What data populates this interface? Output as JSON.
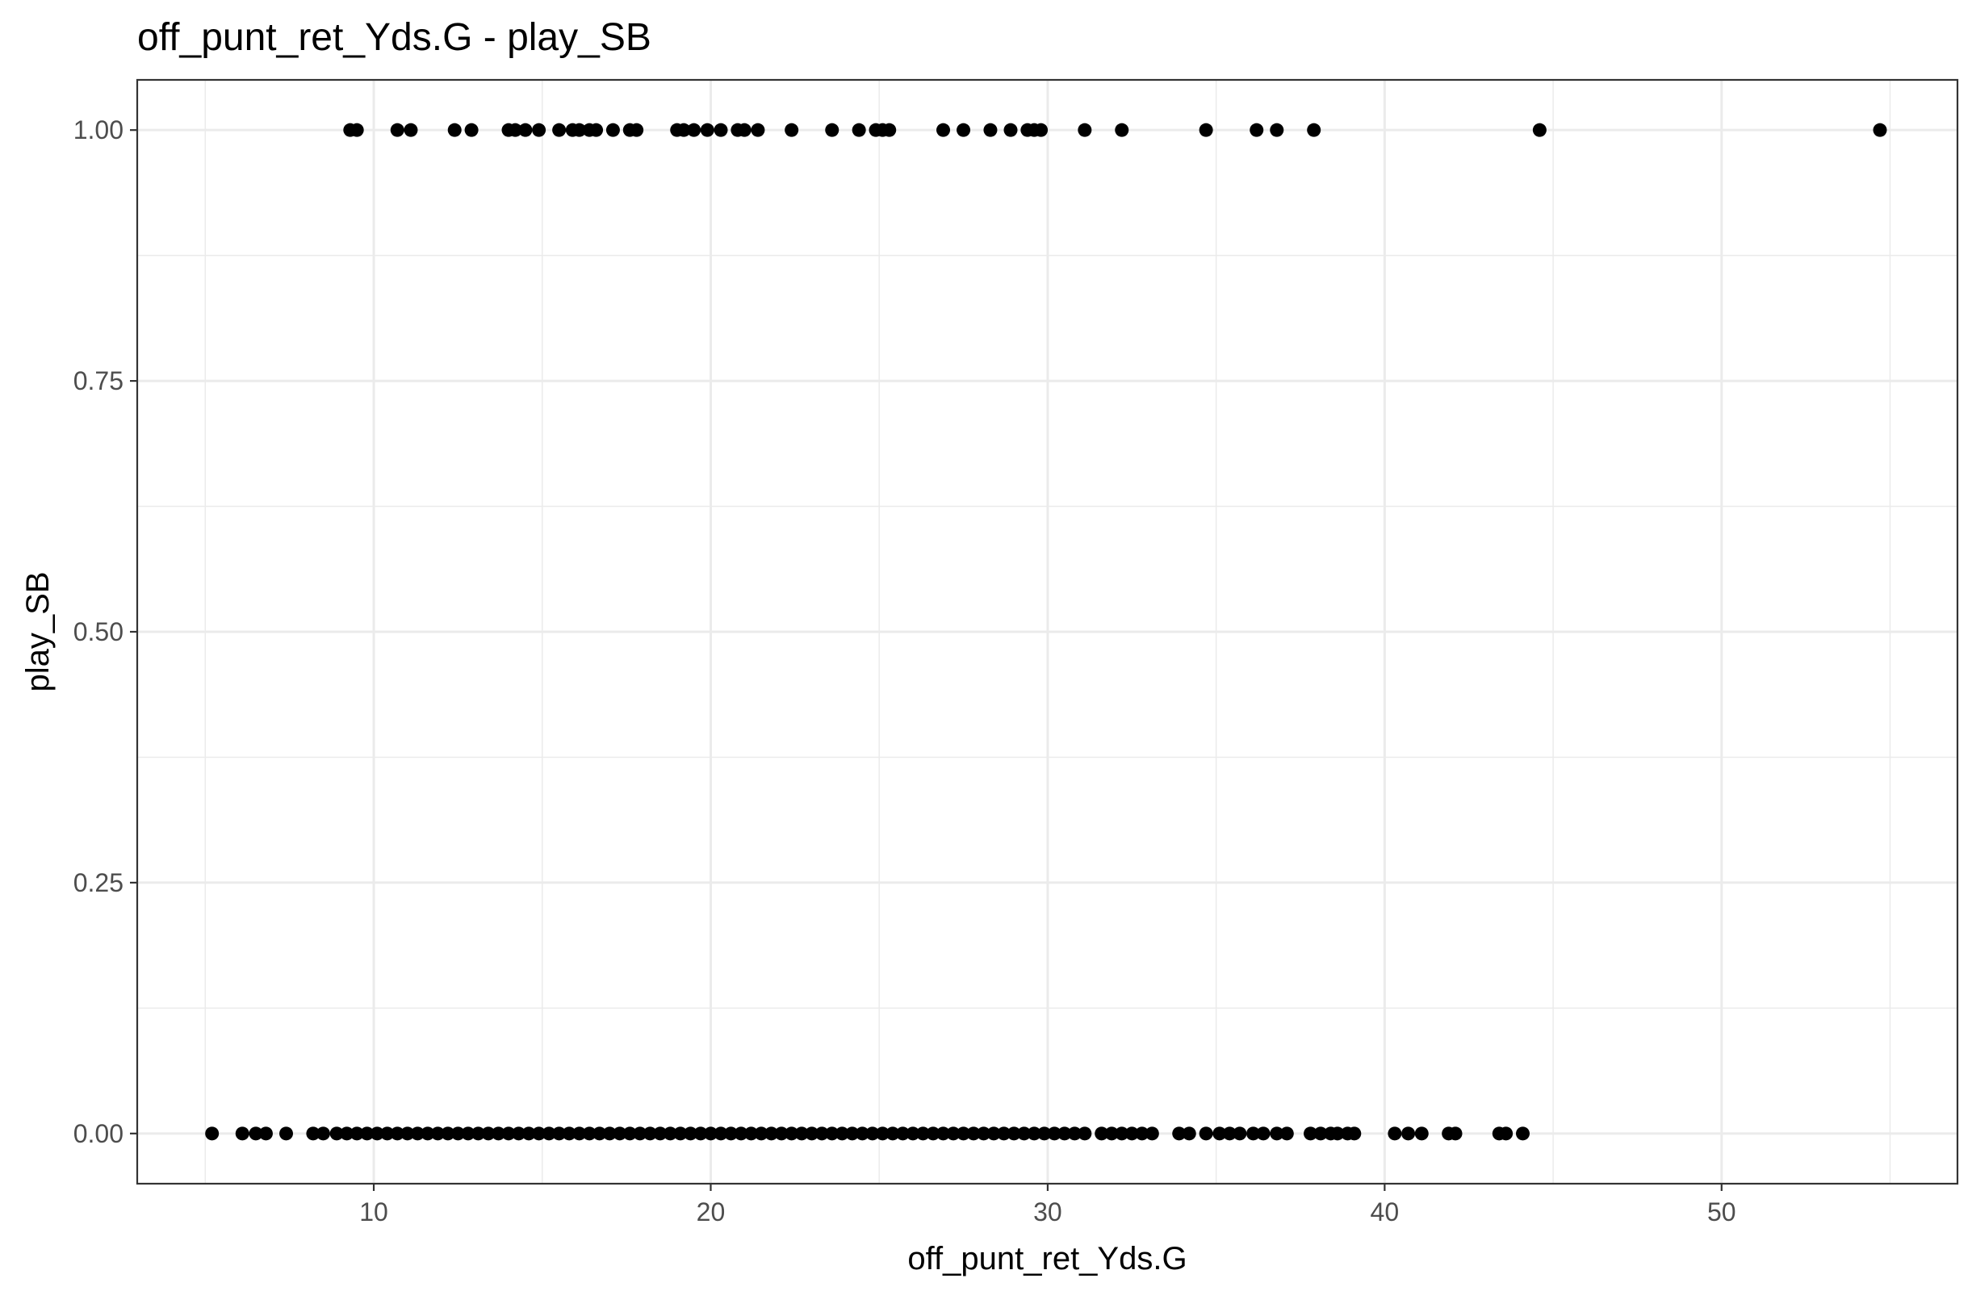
{
  "chart_data": {
    "type": "scatter",
    "title": "off_punt_ret_Yds.G - play_SB",
    "xlabel": "off_punt_ret_Yds.G",
    "ylabel": "play_SB",
    "xlim": [
      2.98,
      57.0
    ],
    "ylim": [
      -0.05,
      1.05
    ],
    "x_ticks": [
      10,
      20,
      30,
      40,
      50
    ],
    "x_tick_labels": [
      "10",
      "20",
      "30",
      "40",
      "50"
    ],
    "y_ticks": [
      0,
      0.25,
      0.5,
      0.75,
      1
    ],
    "y_tick_labels": [
      "0.00",
      "0.25",
      "0.50",
      "0.75",
      "1.00"
    ],
    "grid": true,
    "legend": "none",
    "point_color": "#000000",
    "series": [
      {
        "values": [
          {
            "x": 9.3,
            "y": 1
          },
          {
            "x": 9.5,
            "y": 1
          },
          {
            "x": 10.7,
            "y": 1
          },
          {
            "x": 11.1,
            "y": 1
          },
          {
            "x": 12.4,
            "y": 1
          },
          {
            "x": 12.9,
            "y": 1
          },
          {
            "x": 14.0,
            "y": 1
          },
          {
            "x": 14.2,
            "y": 1
          },
          {
            "x": 14.5,
            "y": 1
          },
          {
            "x": 14.9,
            "y": 1
          },
          {
            "x": 15.5,
            "y": 1
          },
          {
            "x": 15.9,
            "y": 1
          },
          {
            "x": 16.1,
            "y": 1
          },
          {
            "x": 16.4,
            "y": 1
          },
          {
            "x": 16.6,
            "y": 1
          },
          {
            "x": 17.1,
            "y": 1
          },
          {
            "x": 17.6,
            "y": 1
          },
          {
            "x": 17.8,
            "y": 1
          },
          {
            "x": 19.0,
            "y": 1
          },
          {
            "x": 19.2,
            "y": 1
          },
          {
            "x": 19.5,
            "y": 1
          },
          {
            "x": 19.9,
            "y": 1
          },
          {
            "x": 20.3,
            "y": 1
          },
          {
            "x": 20.8,
            "y": 1
          },
          {
            "x": 21.0,
            "y": 1
          },
          {
            "x": 21.4,
            "y": 1
          },
          {
            "x": 22.4,
            "y": 1
          },
          {
            "x": 23.6,
            "y": 1
          },
          {
            "x": 24.4,
            "y": 1
          },
          {
            "x": 24.9,
            "y": 1
          },
          {
            "x": 25.1,
            "y": 1
          },
          {
            "x": 25.3,
            "y": 1
          },
          {
            "x": 26.9,
            "y": 1
          },
          {
            "x": 27.5,
            "y": 1
          },
          {
            "x": 28.3,
            "y": 1
          },
          {
            "x": 28.9,
            "y": 1
          },
          {
            "x": 29.4,
            "y": 1
          },
          {
            "x": 29.6,
            "y": 1
          },
          {
            "x": 29.8,
            "y": 1
          },
          {
            "x": 31.1,
            "y": 1
          },
          {
            "x": 32.2,
            "y": 1
          },
          {
            "x": 34.7,
            "y": 1
          },
          {
            "x": 36.2,
            "y": 1
          },
          {
            "x": 36.8,
            "y": 1
          },
          {
            "x": 37.9,
            "y": 1
          },
          {
            "x": 44.6,
            "y": 1
          },
          {
            "x": 54.7,
            "y": 1
          },
          {
            "x": 5.2,
            "y": 0
          },
          {
            "x": 6.1,
            "y": 0
          },
          {
            "x": 6.5,
            "y": 0
          },
          {
            "x": 6.8,
            "y": 0
          },
          {
            "x": 7.4,
            "y": 0
          },
          {
            "x": 8.2,
            "y": 0
          },
          {
            "x": 8.5,
            "y": 0
          },
          {
            "x": 8.9,
            "y": 0
          },
          {
            "x": 9.2,
            "y": 0
          },
          {
            "x": 9.5,
            "y": 0
          },
          {
            "x": 9.8,
            "y": 0
          },
          {
            "x": 10.1,
            "y": 0
          },
          {
            "x": 10.4,
            "y": 0
          },
          {
            "x": 10.7,
            "y": 0
          },
          {
            "x": 11.0,
            "y": 0
          },
          {
            "x": 11.3,
            "y": 0
          },
          {
            "x": 11.6,
            "y": 0
          },
          {
            "x": 11.9,
            "y": 0
          },
          {
            "x": 12.2,
            "y": 0
          },
          {
            "x": 12.5,
            "y": 0
          },
          {
            "x": 12.8,
            "y": 0
          },
          {
            "x": 13.1,
            "y": 0
          },
          {
            "x": 13.4,
            "y": 0
          },
          {
            "x": 13.7,
            "y": 0
          },
          {
            "x": 14.0,
            "y": 0
          },
          {
            "x": 14.3,
            "y": 0
          },
          {
            "x": 14.6,
            "y": 0
          },
          {
            "x": 14.9,
            "y": 0
          },
          {
            "x": 15.2,
            "y": 0
          },
          {
            "x": 15.5,
            "y": 0
          },
          {
            "x": 15.8,
            "y": 0
          },
          {
            "x": 16.1,
            "y": 0
          },
          {
            "x": 16.4,
            "y": 0
          },
          {
            "x": 16.7,
            "y": 0
          },
          {
            "x": 17.0,
            "y": 0
          },
          {
            "x": 17.3,
            "y": 0
          },
          {
            "x": 17.6,
            "y": 0
          },
          {
            "x": 17.9,
            "y": 0
          },
          {
            "x": 18.2,
            "y": 0
          },
          {
            "x": 18.5,
            "y": 0
          },
          {
            "x": 18.8,
            "y": 0
          },
          {
            "x": 19.1,
            "y": 0
          },
          {
            "x": 19.4,
            "y": 0
          },
          {
            "x": 19.7,
            "y": 0
          },
          {
            "x": 20.0,
            "y": 0
          },
          {
            "x": 20.3,
            "y": 0
          },
          {
            "x": 20.6,
            "y": 0
          },
          {
            "x": 20.9,
            "y": 0
          },
          {
            "x": 21.2,
            "y": 0
          },
          {
            "x": 21.5,
            "y": 0
          },
          {
            "x": 21.8,
            "y": 0
          },
          {
            "x": 22.1,
            "y": 0
          },
          {
            "x": 22.4,
            "y": 0
          },
          {
            "x": 22.7,
            "y": 0
          },
          {
            "x": 23.0,
            "y": 0
          },
          {
            "x": 23.3,
            "y": 0
          },
          {
            "x": 23.6,
            "y": 0
          },
          {
            "x": 23.9,
            "y": 0
          },
          {
            "x": 24.2,
            "y": 0
          },
          {
            "x": 24.5,
            "y": 0
          },
          {
            "x": 24.8,
            "y": 0
          },
          {
            "x": 25.1,
            "y": 0
          },
          {
            "x": 25.4,
            "y": 0
          },
          {
            "x": 25.7,
            "y": 0
          },
          {
            "x": 26.0,
            "y": 0
          },
          {
            "x": 26.3,
            "y": 0
          },
          {
            "x": 26.6,
            "y": 0
          },
          {
            "x": 26.9,
            "y": 0
          },
          {
            "x": 27.2,
            "y": 0
          },
          {
            "x": 27.5,
            "y": 0
          },
          {
            "x": 27.8,
            "y": 0
          },
          {
            "x": 28.1,
            "y": 0
          },
          {
            "x": 28.4,
            "y": 0
          },
          {
            "x": 28.7,
            "y": 0
          },
          {
            "x": 29.0,
            "y": 0
          },
          {
            "x": 29.3,
            "y": 0
          },
          {
            "x": 29.6,
            "y": 0
          },
          {
            "x": 29.9,
            "y": 0
          },
          {
            "x": 30.2,
            "y": 0
          },
          {
            "x": 30.5,
            "y": 0
          },
          {
            "x": 30.8,
            "y": 0
          },
          {
            "x": 31.1,
            "y": 0
          },
          {
            "x": 31.6,
            "y": 0
          },
          {
            "x": 31.9,
            "y": 0
          },
          {
            "x": 32.2,
            "y": 0
          },
          {
            "x": 32.5,
            "y": 0
          },
          {
            "x": 32.8,
            "y": 0
          },
          {
            "x": 33.1,
            "y": 0
          },
          {
            "x": 33.9,
            "y": 0
          },
          {
            "x": 34.2,
            "y": 0
          },
          {
            "x": 34.7,
            "y": 0
          },
          {
            "x": 35.1,
            "y": 0
          },
          {
            "x": 35.4,
            "y": 0
          },
          {
            "x": 35.7,
            "y": 0
          },
          {
            "x": 36.1,
            "y": 0
          },
          {
            "x": 36.4,
            "y": 0
          },
          {
            "x": 36.8,
            "y": 0
          },
          {
            "x": 37.1,
            "y": 0
          },
          {
            "x": 37.8,
            "y": 0
          },
          {
            "x": 38.1,
            "y": 0
          },
          {
            "x": 38.4,
            "y": 0
          },
          {
            "x": 38.6,
            "y": 0
          },
          {
            "x": 38.9,
            "y": 0
          },
          {
            "x": 39.1,
            "y": 0
          },
          {
            "x": 40.3,
            "y": 0
          },
          {
            "x": 40.7,
            "y": 0
          },
          {
            "x": 41.1,
            "y": 0
          },
          {
            "x": 41.9,
            "y": 0
          },
          {
            "x": 42.1,
            "y": 0
          },
          {
            "x": 43.4,
            "y": 0
          },
          {
            "x": 43.6,
            "y": 0
          },
          {
            "x": 44.1,
            "y": 0
          }
        ]
      }
    ]
  }
}
